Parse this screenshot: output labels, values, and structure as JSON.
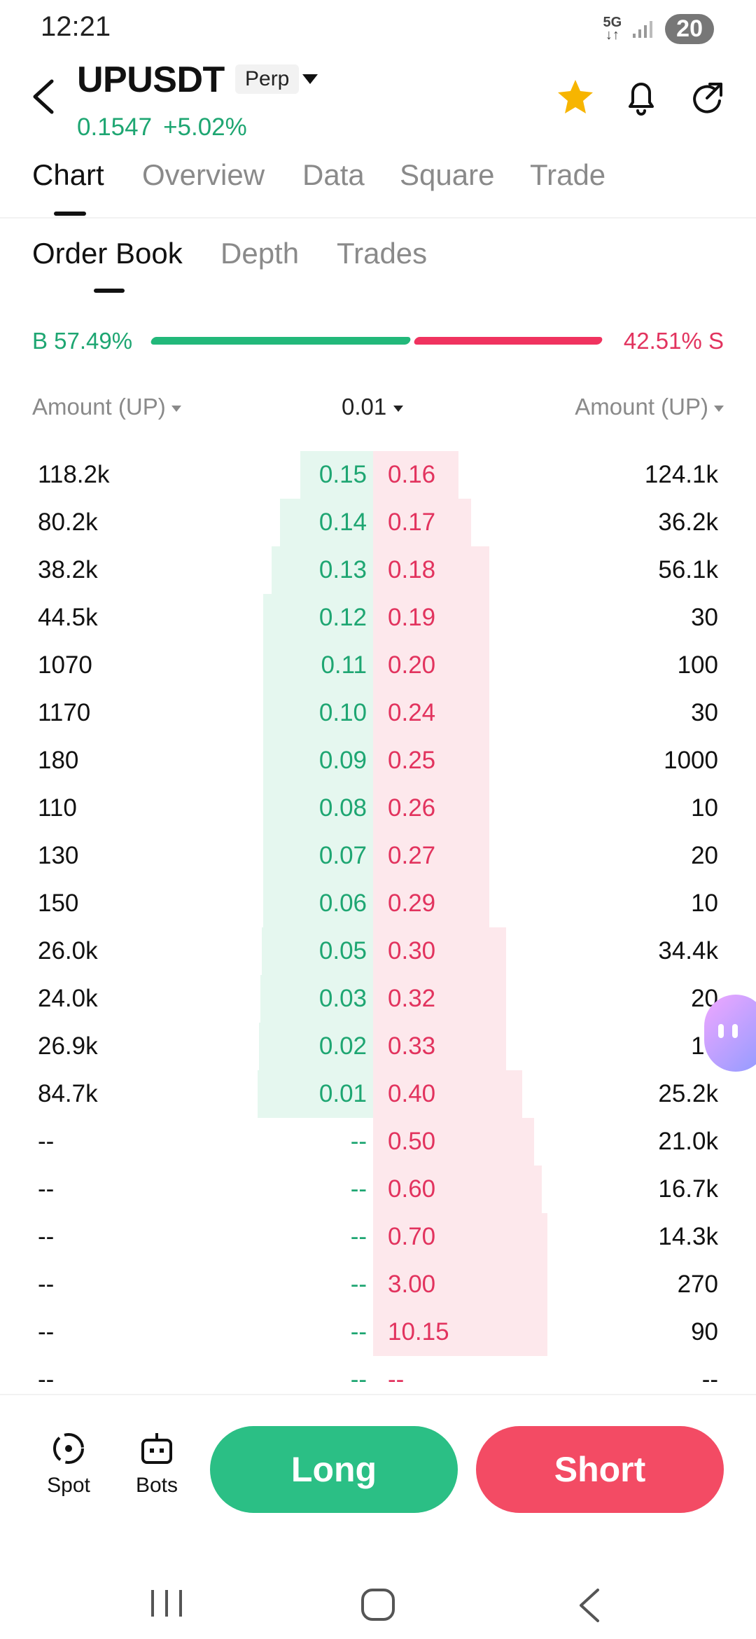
{
  "status": {
    "time": "12:21",
    "network": "5G",
    "battery": "20"
  },
  "header": {
    "symbol": "UPUSDT",
    "badge": "Perp",
    "price": "0.1547",
    "change": "+5.02%"
  },
  "tabs": [
    "Chart",
    "Overview",
    "Data",
    "Square",
    "Trade"
  ],
  "subtabs": [
    "Order Book",
    "Depth",
    "Trades"
  ],
  "ratio": {
    "buy_label": "B 57.49%",
    "sell_label": "42.51% S",
    "buy_fraction": 0.5749
  },
  "columns": {
    "left": "Amount (UP)",
    "precision": "0.01",
    "right": "Amount (UP)"
  },
  "orderbook": [
    {
      "ba": "118.2k",
      "bp": "0.15",
      "sp": "0.16",
      "sa": "124.1k",
      "bd": 0.207,
      "sd": 0.218
    },
    {
      "ba": "80.2k",
      "bp": "0.14",
      "sp": "0.17",
      "sa": "36.2k",
      "bd": 0.265,
      "sd": 0.25
    },
    {
      "ba": "38.2k",
      "bp": "0.13",
      "sp": "0.18",
      "sa": "56.1k",
      "bd": 0.29,
      "sd": 0.296
    },
    {
      "ba": "44.5k",
      "bp": "0.12",
      "sp": "0.19",
      "sa": "30",
      "bd": 0.313,
      "sd": 0.296
    },
    {
      "ba": "1070",
      "bp": "0.11",
      "sp": "0.20",
      "sa": "100",
      "bd": 0.313,
      "sd": 0.296
    },
    {
      "ba": "1170",
      "bp": "0.10",
      "sp": "0.24",
      "sa": "30",
      "bd": 0.313,
      "sd": 0.296
    },
    {
      "ba": "180",
      "bp": "0.09",
      "sp": "0.25",
      "sa": "1000",
      "bd": 0.313,
      "sd": 0.296
    },
    {
      "ba": "110",
      "bp": "0.08",
      "sp": "0.26",
      "sa": "10",
      "bd": 0.313,
      "sd": 0.296
    },
    {
      "ba": "130",
      "bp": "0.07",
      "sp": "0.27",
      "sa": "20",
      "bd": 0.313,
      "sd": 0.296
    },
    {
      "ba": "150",
      "bp": "0.06",
      "sp": "0.29",
      "sa": "10",
      "bd": 0.313,
      "sd": 0.296
    },
    {
      "ba": "26.0k",
      "bp": "0.05",
      "sp": "0.30",
      "sa": "34.4k",
      "bd": 0.318,
      "sd": 0.34
    },
    {
      "ba": "24.0k",
      "bp": "0.03",
      "sp": "0.32",
      "sa": "20",
      "bd": 0.322,
      "sd": 0.34
    },
    {
      "ba": "26.9k",
      "bp": "0.02",
      "sp": "0.33",
      "sa": "10",
      "bd": 0.326,
      "sd": 0.34
    },
    {
      "ba": "84.7k",
      "bp": "0.01",
      "sp": "0.40",
      "sa": "25.2k",
      "bd": 0.33,
      "sd": 0.38
    },
    {
      "ba": "--",
      "bp": "--",
      "sp": "0.50",
      "sa": "21.0k",
      "bd": 0,
      "sd": 0.41
    },
    {
      "ba": "--",
      "bp": "--",
      "sp": "0.60",
      "sa": "16.7k",
      "bd": 0,
      "sd": 0.43
    },
    {
      "ba": "--",
      "bp": "--",
      "sp": "0.70",
      "sa": "14.3k",
      "bd": 0,
      "sd": 0.445
    },
    {
      "ba": "--",
      "bp": "--",
      "sp": "3.00",
      "sa": "270",
      "bd": 0,
      "sd": 0.445
    },
    {
      "ba": "--",
      "bp": "--",
      "sp": "10.15",
      "sa": "90",
      "bd": 0,
      "sd": 0.445
    },
    {
      "ba": "--",
      "bp": "--",
      "sp": "--",
      "sa": "--",
      "bd": 0,
      "sd": 0
    }
  ],
  "bottom": {
    "spot": "Spot",
    "bots": "Bots",
    "long": "Long",
    "short": "Short"
  },
  "colors": {
    "buy": "#1ea672",
    "sell": "#e2335e",
    "long_btn": "#2bbf85",
    "short_btn": "#f34b64"
  },
  "icons": [
    "back-icon",
    "star-icon",
    "bell-icon",
    "share-icon",
    "spot-icon",
    "bots-icon",
    "recents-icon",
    "home-icon",
    "nav-back-icon"
  ]
}
